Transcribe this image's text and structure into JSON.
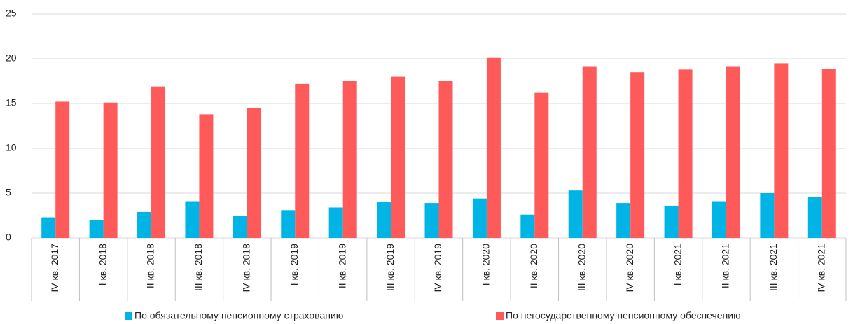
{
  "chart_data": {
    "type": "bar",
    "categories": [
      "IV кв. 2017",
      "I кв. 2018",
      "II кв. 2018",
      "III кв. 2018",
      "IV кв. 2018",
      "I кв. 2019",
      "II кв. 2019",
      "III кв. 2019",
      "IV кв. 2019",
      "I кв. 2020",
      "II кв. 2020",
      "III кв. 2020",
      "IV кв. 2020",
      "I кв. 2021",
      "II кв. 2021",
      "III кв. 2021",
      "IV кв. 2021"
    ],
    "series": [
      {
        "name": "По обязательному пенсионному страхованию",
        "color": "#00b4e6",
        "values": [
          2.3,
          2.0,
          2.9,
          4.1,
          2.5,
          3.1,
          3.4,
          4.0,
          3.9,
          4.4,
          2.6,
          5.3,
          3.9,
          3.6,
          4.1,
          5.0,
          4.6
        ]
      },
      {
        "name": "По негосударственному пенсионному обеспечению",
        "color": "#ff5a5a",
        "values": [
          15.2,
          15.1,
          16.9,
          13.8,
          14.5,
          17.2,
          17.5,
          18.0,
          17.5,
          20.1,
          16.2,
          19.1,
          18.5,
          18.8,
          19.1,
          19.5,
          18.9
        ]
      }
    ],
    "ylim": [
      0,
      25
    ],
    "yticks": [
      0,
      5,
      10,
      15,
      20,
      25
    ],
    "grid": true,
    "legend": "bottom"
  }
}
